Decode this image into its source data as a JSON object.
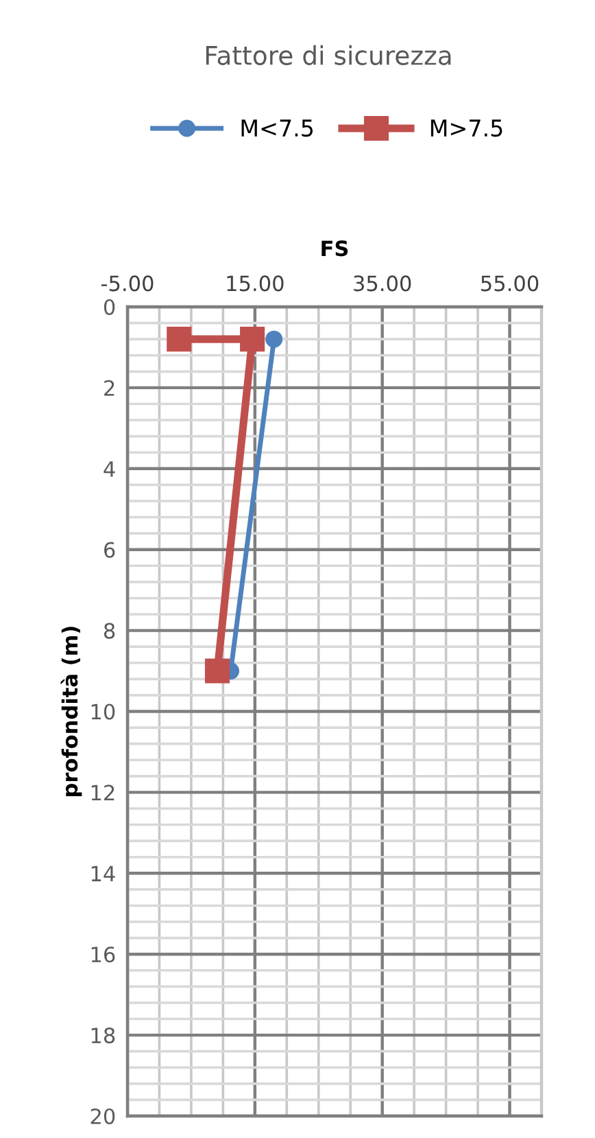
{
  "chart_data": {
    "type": "line",
    "title": "Fattore di sicurezza",
    "xlabel": "FS",
    "ylabel": "profondità (m)",
    "legend": "top",
    "grid": true,
    "xlim": [
      -5,
      60
    ],
    "xticks": [
      {
        "value": -5,
        "label": "-5.00"
      },
      {
        "value": 0,
        "label": null
      },
      {
        "value": 5,
        "label": null
      },
      {
        "value": 10,
        "label": null
      },
      {
        "value": 15,
        "label": "15.00"
      },
      {
        "value": 20,
        "label": null
      },
      {
        "value": 25,
        "label": null
      },
      {
        "value": 30,
        "label": null
      },
      {
        "value": 35,
        "label": "35.00"
      },
      {
        "value": 40,
        "label": null
      },
      {
        "value": 45,
        "label": null
      },
      {
        "value": 50,
        "label": null
      },
      {
        "value": 55,
        "label": "55.00"
      }
    ],
    "ylim": [
      20,
      0
    ],
    "yticks": [
      0,
      {
        "value": 0.4,
        "label": null
      },
      {
        "value": 0.8,
        "label": null
      },
      {
        "value": 1.2,
        "label": null
      },
      {
        "value": 1.6,
        "label": null
      },
      2,
      {
        "value": 2.4,
        "label": null
      },
      {
        "value": 2.8,
        "label": null
      },
      {
        "value": 3.2,
        "label": null
      },
      {
        "value": 3.6,
        "label": null
      },
      4,
      {
        "value": 4.4,
        "label": null
      },
      {
        "value": 4.8,
        "label": null
      },
      {
        "value": 5.2,
        "label": null
      },
      {
        "value": 5.6,
        "label": null
      },
      6,
      {
        "value": 6.4,
        "label": null
      },
      {
        "value": 6.8,
        "label": null
      },
      {
        "value": 7.2,
        "label": null
      },
      {
        "value": 7.6,
        "label": null
      },
      8,
      {
        "value": 8.4,
        "label": null
      },
      {
        "value": 8.8,
        "label": null
      },
      {
        "value": 9.2,
        "label": null
      },
      {
        "value": 9.6,
        "label": null
      },
      10,
      {
        "value": 10.4,
        "label": null
      },
      {
        "value": 10.8,
        "label": null
      },
      {
        "value": 11.2,
        "label": null
      },
      {
        "value": 11.6,
        "label": null
      },
      12,
      {
        "value": 12.4,
        "label": null
      },
      {
        "value": 12.8,
        "label": null
      },
      {
        "value": 13.2,
        "label": null
      },
      {
        "value": 13.6,
        "label": null
      },
      14,
      {
        "value": 14.4,
        "label": null
      },
      {
        "value": 14.8,
        "label": null
      },
      {
        "value": 15.2,
        "label": null
      },
      {
        "value": 15.6,
        "label": null
      },
      16,
      {
        "value": 16.4,
        "label": null
      },
      {
        "value": 16.8,
        "label": null
      },
      {
        "value": 17.2,
        "label": null
      },
      {
        "value": 17.6,
        "label": null
      },
      18,
      {
        "value": 18.4,
        "label": null
      },
      {
        "value": 18.8,
        "label": null
      },
      {
        "value": 19.2,
        "label": null
      },
      {
        "value": 19.6,
        "label": null
      },
      20
    ],
    "series": [
      {
        "name": "M<7.5",
        "color": "#4f81bd",
        "marker": "circle",
        "x": [
          18.0,
          11.2
        ],
        "values": [
          0.8,
          9.0
        ]
      },
      {
        "name": "M>7.5",
        "color": "#c0504d",
        "marker": "square",
        "x": [
          3.1,
          14.6,
          9.1
        ],
        "values": [
          0.8,
          0.8,
          9.0
        ]
      }
    ]
  }
}
